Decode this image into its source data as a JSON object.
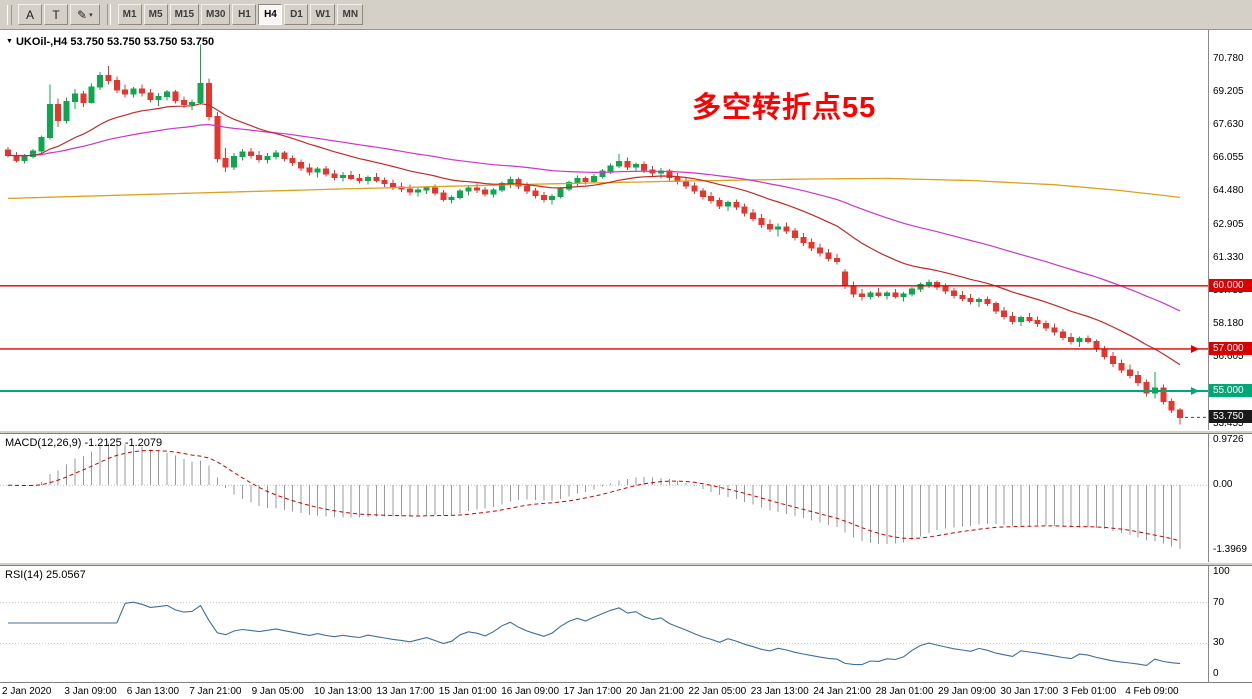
{
  "toolbar": {
    "tools": [
      {
        "label": "A"
      },
      {
        "label": "T"
      },
      {
        "label": "✎"
      }
    ],
    "dropdown_arrow": "▾",
    "timeframes": [
      {
        "label": "M1",
        "active": false
      },
      {
        "label": "M5",
        "active": false
      },
      {
        "label": "M15",
        "active": false
      },
      {
        "label": "M30",
        "active": false
      },
      {
        "label": "H1",
        "active": false
      },
      {
        "label": "H4",
        "active": true
      },
      {
        "label": "D1",
        "active": false
      },
      {
        "label": "W1",
        "active": false
      },
      {
        "label": "MN",
        "active": false
      }
    ]
  },
  "header": {
    "collapse_arrow": "▼",
    "title": "UKOil-,H4",
    "quotes": "53.750 53.750 53.750 53.750"
  },
  "chart_data": {
    "type": "candlestick",
    "symbol": "UKOil-",
    "timeframe": "H4",
    "annotation": {
      "text": "多空转折点55",
      "color": "#FF0000"
    },
    "price_range": [
      53.15,
      72.15
    ],
    "axis_ticks": [
      70.78,
      69.205,
      67.63,
      66.055,
      64.48,
      62.905,
      61.33,
      59.755,
      58.18,
      56.605,
      53.455
    ],
    "levels": [
      {
        "value": 60.0,
        "label": "60.000",
        "color": "#DD0000",
        "width": 1.4,
        "marker": false
      },
      {
        "value": 57.0,
        "label": "57.000",
        "color": "#DD0000",
        "width": 1.4,
        "marker": true
      },
      {
        "value": 55.0,
        "label": "55.000",
        "color": "#00A878",
        "width": 2.0,
        "marker": true
      }
    ],
    "current_price": {
      "value": 53.75,
      "label": "53.750",
      "badge_color": "#1a1a1a"
    },
    "colors": {
      "bull": "#0DA84E",
      "bear": "#E5352C"
    },
    "moving_averages": {
      "fast": {
        "period": 20,
        "color": "#C22A2A"
      },
      "slow": {
        "period": 55,
        "color": "#C937C9"
      },
      "trend": {
        "color": "#D9A31B",
        "points": [
          [
            0,
            64.15
          ],
          [
            20,
            64.38
          ],
          [
            40,
            64.6
          ],
          [
            60,
            64.8
          ],
          [
            80,
            64.97
          ],
          [
            95,
            65.07
          ],
          [
            105,
            65.1
          ],
          [
            115,
            65.0
          ],
          [
            125,
            64.8
          ],
          [
            133,
            64.52
          ],
          [
            140,
            64.2
          ]
        ]
      }
    },
    "candles": [
      [
        66.45,
        66.6,
        66.1,
        66.2
      ],
      [
        66.2,
        66.35,
        65.85,
        65.95
      ],
      [
        65.95,
        66.25,
        65.8,
        66.15
      ],
      [
        66.15,
        66.5,
        66.05,
        66.4
      ],
      [
        66.4,
        67.15,
        66.3,
        67.05
      ],
      [
        67.05,
        69.55,
        66.95,
        68.6
      ],
      [
        68.6,
        68.9,
        67.55,
        67.85
      ],
      [
        67.85,
        68.95,
        67.7,
        68.75
      ],
      [
        68.75,
        69.35,
        68.4,
        69.1
      ],
      [
        69.1,
        69.25,
        68.5,
        68.7
      ],
      [
        68.7,
        69.6,
        68.65,
        69.45
      ],
      [
        69.45,
        70.15,
        69.3,
        70.0
      ],
      [
        70.0,
        70.45,
        69.55,
        69.75
      ],
      [
        69.75,
        69.95,
        69.15,
        69.3
      ],
      [
        69.3,
        69.55,
        68.95,
        69.1
      ],
      [
        69.1,
        69.45,
        68.95,
        69.35
      ],
      [
        69.35,
        69.55,
        69.0,
        69.15
      ],
      [
        69.15,
        69.35,
        68.7,
        68.85
      ],
      [
        68.85,
        69.15,
        68.55,
        69.0
      ],
      [
        69.0,
        69.3,
        68.8,
        69.2
      ],
      [
        69.2,
        69.3,
        68.65,
        68.8
      ],
      [
        68.8,
        69.0,
        68.45,
        68.6
      ],
      [
        68.6,
        68.85,
        68.35,
        68.7
      ],
      [
        68.7,
        71.45,
        68.6,
        69.6
      ],
      [
        69.6,
        69.85,
        67.85,
        68.05
      ],
      [
        68.05,
        68.25,
        65.85,
        66.05
      ],
      [
        66.05,
        66.55,
        65.4,
        65.65
      ],
      [
        65.65,
        66.3,
        65.5,
        66.15
      ],
      [
        66.15,
        66.5,
        65.95,
        66.35
      ],
      [
        66.35,
        66.55,
        66.05,
        66.2
      ],
      [
        66.2,
        66.4,
        65.85,
        66.0
      ],
      [
        66.0,
        66.3,
        65.8,
        66.15
      ],
      [
        66.15,
        66.45,
        66.0,
        66.3
      ],
      [
        66.3,
        66.4,
        65.9,
        66.05
      ],
      [
        66.05,
        66.2,
        65.7,
        65.85
      ],
      [
        65.85,
        66.0,
        65.45,
        65.6
      ],
      [
        65.6,
        65.8,
        65.25,
        65.4
      ],
      [
        65.4,
        65.65,
        65.15,
        65.55
      ],
      [
        65.55,
        65.7,
        65.2,
        65.3
      ],
      [
        65.3,
        65.5,
        65.0,
        65.15
      ],
      [
        65.15,
        65.4,
        64.95,
        65.25
      ],
      [
        65.25,
        65.45,
        65.0,
        65.1
      ],
      [
        65.1,
        65.3,
        64.85,
        65.0
      ],
      [
        65.0,
        65.25,
        64.8,
        65.15
      ],
      [
        65.15,
        65.35,
        64.9,
        65.0
      ],
      [
        65.0,
        65.15,
        64.7,
        64.85
      ],
      [
        64.85,
        65.05,
        64.55,
        64.7
      ],
      [
        64.7,
        64.9,
        64.45,
        64.6
      ],
      [
        64.6,
        64.8,
        64.3,
        64.45
      ],
      [
        64.45,
        64.7,
        64.25,
        64.55
      ],
      [
        64.55,
        64.75,
        64.35,
        64.65
      ],
      [
        64.65,
        64.8,
        64.3,
        64.4
      ],
      [
        64.4,
        64.55,
        64.0,
        64.1
      ],
      [
        64.1,
        64.3,
        63.9,
        64.2
      ],
      [
        64.2,
        64.6,
        64.1,
        64.5
      ],
      [
        64.5,
        64.75,
        64.3,
        64.65
      ],
      [
        64.65,
        64.85,
        64.4,
        64.55
      ],
      [
        64.55,
        64.7,
        64.25,
        64.35
      ],
      [
        64.35,
        64.65,
        64.2,
        64.55
      ],
      [
        64.55,
        64.95,
        64.45,
        64.85
      ],
      [
        64.85,
        65.2,
        64.65,
        65.05
      ],
      [
        65.05,
        65.15,
        64.6,
        64.75
      ],
      [
        64.75,
        64.9,
        64.35,
        64.5
      ],
      [
        64.5,
        64.65,
        64.15,
        64.3
      ],
      [
        64.3,
        64.45,
        63.95,
        64.1
      ],
      [
        64.1,
        64.35,
        63.85,
        64.25
      ],
      [
        64.25,
        64.7,
        64.15,
        64.6
      ],
      [
        64.6,
        65.0,
        64.5,
        64.9
      ],
      [
        64.9,
        65.25,
        64.75,
        65.1
      ],
      [
        65.1,
        65.2,
        64.8,
        64.95
      ],
      [
        64.95,
        65.3,
        64.85,
        65.2
      ],
      [
        65.2,
        65.55,
        65.1,
        65.45
      ],
      [
        65.45,
        65.8,
        65.3,
        65.7
      ],
      [
        65.7,
        66.25,
        65.6,
        65.9
      ],
      [
        65.9,
        66.1,
        65.5,
        65.65
      ],
      [
        65.65,
        65.85,
        65.4,
        65.75
      ],
      [
        65.75,
        65.9,
        65.35,
        65.5
      ],
      [
        65.5,
        65.7,
        65.2,
        65.35
      ],
      [
        65.35,
        65.6,
        65.1,
        65.45
      ],
      [
        65.45,
        65.55,
        65.0,
        65.15
      ],
      [
        65.15,
        65.35,
        64.8,
        64.95
      ],
      [
        64.95,
        65.15,
        64.6,
        64.75
      ],
      [
        64.75,
        64.9,
        64.35,
        64.5
      ],
      [
        64.5,
        64.65,
        64.1,
        64.25
      ],
      [
        64.25,
        64.45,
        63.9,
        64.05
      ],
      [
        64.05,
        64.2,
        63.65,
        63.8
      ],
      [
        63.8,
        64.05,
        63.55,
        63.95
      ],
      [
        63.95,
        64.1,
        63.6,
        63.75
      ],
      [
        63.75,
        63.9,
        63.3,
        63.45
      ],
      [
        63.45,
        63.65,
        63.05,
        63.2
      ],
      [
        63.2,
        63.4,
        62.75,
        62.9
      ],
      [
        62.9,
        63.15,
        62.55,
        62.7
      ],
      [
        62.7,
        62.95,
        62.35,
        62.8
      ],
      [
        62.8,
        63.0,
        62.45,
        62.6
      ],
      [
        62.6,
        62.75,
        62.15,
        62.3
      ],
      [
        62.3,
        62.5,
        61.9,
        62.05
      ],
      [
        62.05,
        62.25,
        61.65,
        61.8
      ],
      [
        61.8,
        62.0,
        61.4,
        61.55
      ],
      [
        61.55,
        61.75,
        61.15,
        61.3
      ],
      [
        61.3,
        61.5,
        61.0,
        61.15
      ],
      [
        60.65,
        60.8,
        59.85,
        60.0
      ],
      [
        60.0,
        60.2,
        59.45,
        59.6
      ],
      [
        59.6,
        59.85,
        59.3,
        59.5
      ],
      [
        59.5,
        59.75,
        59.35,
        59.65
      ],
      [
        59.65,
        59.9,
        59.45,
        59.55
      ],
      [
        59.55,
        59.75,
        59.35,
        59.65
      ],
      [
        59.65,
        59.85,
        59.4,
        59.5
      ],
      [
        59.5,
        59.7,
        59.25,
        59.6
      ],
      [
        59.6,
        59.95,
        59.5,
        59.85
      ],
      [
        59.85,
        60.15,
        59.7,
        60.05
      ],
      [
        60.05,
        60.3,
        59.9,
        60.15
      ],
      [
        60.15,
        60.25,
        59.8,
        59.95
      ],
      [
        59.95,
        60.1,
        59.6,
        59.75
      ],
      [
        59.75,
        59.9,
        59.4,
        59.55
      ],
      [
        59.55,
        59.75,
        59.25,
        59.4
      ],
      [
        59.4,
        59.6,
        59.1,
        59.25
      ],
      [
        59.25,
        59.45,
        59.0,
        59.35
      ],
      [
        59.35,
        59.5,
        59.05,
        59.15
      ],
      [
        59.15,
        59.25,
        58.65,
        58.8
      ],
      [
        58.8,
        59.0,
        58.4,
        58.55
      ],
      [
        58.55,
        58.75,
        58.15,
        58.3
      ],
      [
        58.3,
        58.6,
        58.1,
        58.5
      ],
      [
        58.5,
        58.7,
        58.25,
        58.35
      ],
      [
        58.35,
        58.55,
        58.05,
        58.2
      ],
      [
        58.2,
        58.35,
        57.85,
        58.0
      ],
      [
        58.0,
        58.2,
        57.65,
        57.8
      ],
      [
        57.8,
        57.95,
        57.4,
        57.55
      ],
      [
        57.55,
        57.75,
        57.2,
        57.35
      ],
      [
        57.35,
        57.6,
        57.1,
        57.5
      ],
      [
        57.5,
        57.65,
        57.25,
        57.35
      ],
      [
        57.35,
        57.45,
        56.85,
        57.0
      ],
      [
        57.0,
        57.15,
        56.5,
        56.65
      ],
      [
        56.65,
        56.85,
        56.15,
        56.3
      ],
      [
        56.3,
        56.5,
        55.85,
        56.0
      ],
      [
        56.0,
        56.25,
        55.6,
        55.75
      ],
      [
        55.75,
        55.95,
        55.25,
        55.4
      ],
      [
        55.4,
        55.55,
        54.75,
        54.9
      ],
      [
        54.9,
        55.9,
        54.65,
        55.15
      ],
      [
        55.15,
        55.3,
        54.35,
        54.5
      ],
      [
        54.5,
        54.65,
        53.95,
        54.1
      ],
      [
        54.1,
        54.2,
        53.4,
        53.75
      ]
    ]
  },
  "macd": {
    "label": "MACD(12,26,9) -1.2125 -1.2079",
    "values": [
      -1.2125,
      -1.2079
    ],
    "fast": 12,
    "slow": 26,
    "signal": 9,
    "range": [
      1.1,
      -1.65
    ],
    "axis_ticks": [
      {
        "value": 0.9726,
        "label": "0.9726"
      },
      {
        "value": 0.0,
        "label": "0.00"
      },
      {
        "value": -1.3969,
        "label": "-1.3969"
      }
    ],
    "colors": {
      "histogram": "#999999",
      "signal": "#CC0000"
    }
  },
  "rsi": {
    "label": "RSI(14) 25.0567",
    "value": 25.0567,
    "period": 14,
    "levels": [
      70,
      30
    ],
    "axis_ticks": [
      {
        "value": 100,
        "label": "100"
      },
      {
        "value": 70,
        "label": "70"
      },
      {
        "value": 30,
        "label": "30"
      },
      {
        "value": 0,
        "label": "0"
      }
    ],
    "color": "#3E6E9E"
  },
  "time_axis": {
    "labels": [
      "2 Jan 2020",
      "3 Jan 09:00",
      "6 Jan 13:00",
      "7 Jan 21:00",
      "9 Jan 05:00",
      "10 Jan 13:00",
      "13 Jan 17:00",
      "15 Jan 01:00",
      "16 Jan 09:00",
      "17 Jan 17:00",
      "20 Jan 21:00",
      "22 Jan 05:00",
      "23 Jan 13:00",
      "24 Jan 21:00",
      "28 Jan 01:00",
      "29 Jan 09:00",
      "30 Jan 17:00",
      "3 Feb 01:00",
      "4 Feb 09:00"
    ]
  }
}
